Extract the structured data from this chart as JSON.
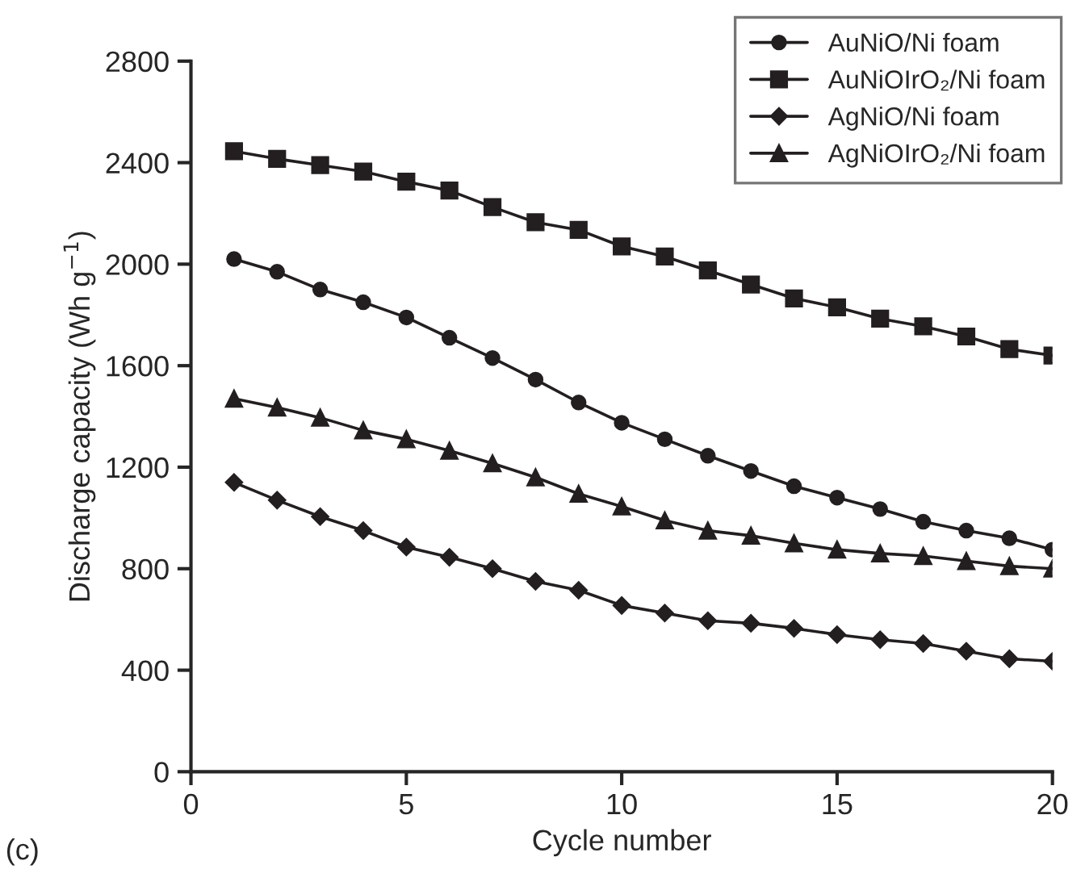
{
  "chart_data": {
    "type": "line",
    "xlabel": "Cycle number",
    "ylabel": "Discharge capacity (Wh g$^{−1}$)",
    "x": [
      1,
      2,
      3,
      4,
      5,
      6,
      7,
      8,
      9,
      10,
      11,
      12,
      13,
      14,
      15,
      16,
      17,
      18,
      19,
      20
    ],
    "series": [
      {
        "name": "AuNiO/Ni foam",
        "color": "#231f20",
        "marker": "circle",
        "values": [
          2020,
          1970,
          1900,
          1850,
          1790,
          1710,
          1630,
          1545,
          1455,
          1375,
          1310,
          1245,
          1185,
          1125,
          1080,
          1035,
          985,
          950,
          920,
          875
        ]
      },
      {
        "name": "AuNiOIrO₂/Ni foam",
        "color": "#231f20",
        "marker": "square",
        "values": [
          2445,
          2415,
          2390,
          2365,
          2325,
          2290,
          2225,
          2165,
          2135,
          2070,
          2030,
          1975,
          1920,
          1865,
          1830,
          1785,
          1755,
          1715,
          1665,
          1640
        ]
      },
      {
        "name": "AgNiO/Ni foam",
        "color": "#231f20",
        "marker": "diamond",
        "values": [
          1140,
          1070,
          1005,
          950,
          885,
          845,
          800,
          750,
          715,
          655,
          625,
          595,
          585,
          565,
          540,
          520,
          505,
          475,
          445,
          435
        ]
      },
      {
        "name": "AgNiOIrO₂/Ni foam",
        "color": "#231f20",
        "marker": "triangle",
        "values": [
          1470,
          1435,
          1395,
          1345,
          1310,
          1265,
          1215,
          1160,
          1095,
          1045,
          990,
          950,
          930,
          900,
          875,
          860,
          850,
          830,
          810,
          800
        ]
      }
    ],
    "xlim": [
      0,
      20
    ],
    "xticks": [
      0,
      5,
      10,
      15,
      20
    ],
    "ylim": [
      0,
      2800
    ],
    "yticks": [
      0,
      400,
      800,
      1200,
      1600,
      2000,
      2400,
      2800
    ],
    "grid": false,
    "legend": "top right",
    "line_style": "solid",
    "annotations": [
      "(c)"
    ]
  }
}
